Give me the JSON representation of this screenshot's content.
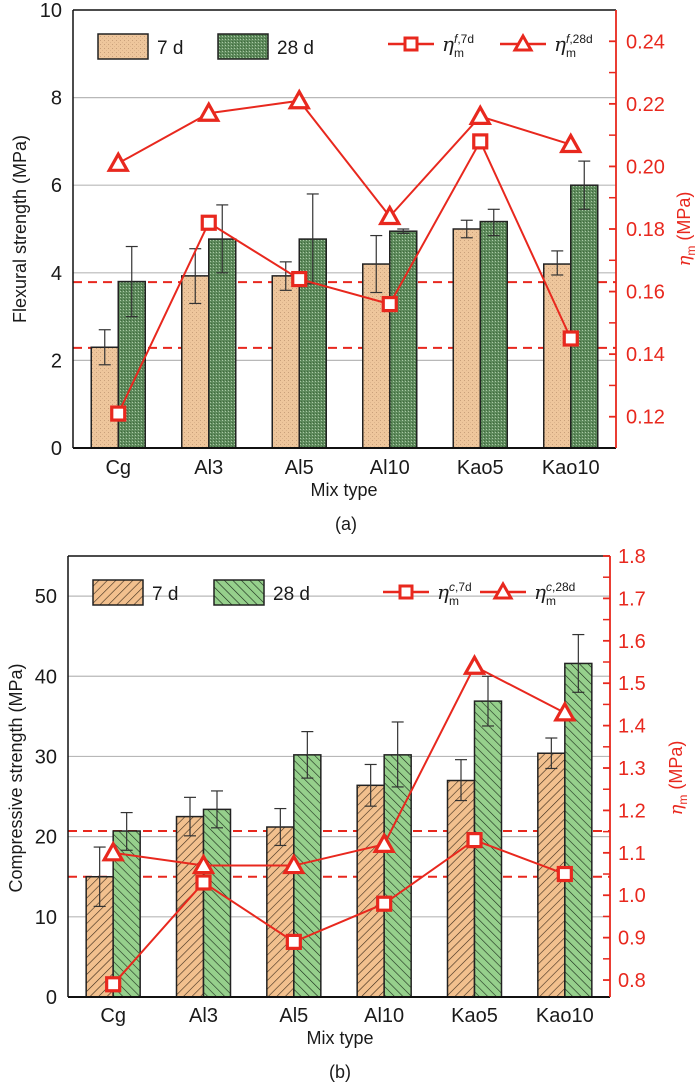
{
  "chart_data": [
    {
      "id": "a",
      "type": "bar",
      "caption": "(a)",
      "xlabel": "Mix type",
      "ylabel": "Flexural strength (MPa)",
      "y2label_symbol": "η",
      "y2label_sub": "m",
      "y2label_unit": " (MPa)",
      "categories": [
        "Cg",
        "Al3",
        "Al5",
        "Al10",
        "Kao5",
        "Kao10"
      ],
      "ylim": [
        0,
        10
      ],
      "yticks": [
        0,
        2,
        4,
        6,
        8,
        10
      ],
      "ytick_labels": [
        "0",
        "2",
        "4",
        "6",
        "8",
        "10"
      ],
      "y2lim": [
        0.11,
        0.25
      ],
      "y2ticks": [
        0.12,
        0.14,
        0.16,
        0.18,
        0.2,
        0.22,
        0.24
      ],
      "y2tick_labels": [
        "0.12",
        "0.14",
        "0.16",
        "0.18",
        "0.20",
        "0.22",
        "0.24"
      ],
      "y2minor": [
        0.13,
        0.15,
        0.17,
        0.19,
        0.21,
        0.23
      ],
      "grid": true,
      "bar_style": "dotted-texture",
      "series": [
        {
          "name": "7 d",
          "kind": "bar",
          "axis": "left",
          "color": "#eec69c",
          "values": [
            2.3,
            3.93,
            3.93,
            4.2,
            5.0,
            4.2
          ],
          "err_low": [
            1.9,
            3.3,
            3.6,
            3.55,
            4.8,
            3.95
          ],
          "err_high": [
            2.7,
            4.55,
            4.25,
            4.85,
            5.2,
            4.5
          ]
        },
        {
          "name": "28 d",
          "kind": "bar",
          "axis": "left",
          "color": "#5e8a5c",
          "values": [
            3.8,
            4.77,
            4.77,
            4.95,
            5.17,
            6.0
          ],
          "err_low": [
            3.0,
            4.0,
            3.75,
            4.9,
            4.85,
            5.45
          ],
          "err_high": [
            4.6,
            5.55,
            5.8,
            5.0,
            5.45,
            6.55
          ]
        },
        {
          "name": "η_m^{f,7d}",
          "label_main": "η",
          "label_sub": "m",
          "label_sup": "f,7d",
          "kind": "line",
          "marker": "square",
          "axis": "right",
          "color": "#e8281e",
          "values": [
            0.121,
            0.182,
            0.164,
            0.156,
            0.208,
            0.145
          ]
        },
        {
          "name": "η_m^{f,28d}",
          "label_main": "η",
          "label_sub": "m",
          "label_sup": "f,28d",
          "kind": "line",
          "marker": "triangle",
          "axis": "right",
          "color": "#e8281e",
          "values": [
            0.201,
            0.217,
            0.221,
            0.184,
            0.216,
            0.207
          ]
        }
      ],
      "reference_lines": [
        {
          "axis": "right",
          "value": 0.163,
          "style": "dashed",
          "color": "#e8281e"
        },
        {
          "axis": "right",
          "value": 0.142,
          "style": "dashed",
          "color": "#e8281e"
        }
      ],
      "legend": {
        "bars_placement": "top-left",
        "lines_placement": "top-right"
      }
    },
    {
      "id": "b",
      "type": "bar",
      "caption": "(b)",
      "xlabel": "Mix type",
      "ylabel": "Compressive strength (MPa)",
      "y2label_symbol": "η",
      "y2label_sub": "m",
      "y2label_unit": " (MPa)",
      "categories": [
        "Cg",
        "Al3",
        "Al5",
        "Al10",
        "Kao5",
        "Kao10"
      ],
      "ylim": [
        0,
        55
      ],
      "yticks": [
        0,
        10,
        20,
        30,
        40,
        50
      ],
      "ytick_labels": [
        "0",
        "10",
        "20",
        "30",
        "40",
        "50"
      ],
      "y2lim": [
        0.76,
        1.8
      ],
      "y2ticks": [
        0.8,
        0.9,
        1.0,
        1.1,
        1.2,
        1.3,
        1.4,
        1.5,
        1.6,
        1.7,
        1.8
      ],
      "y2tick_labels": [
        "0.8",
        "0.9",
        "1.0",
        "1.1",
        "1.2",
        "1.3",
        "1.4",
        "1.5",
        "1.6",
        "1.7",
        "1.8"
      ],
      "y2minor": [
        0.85,
        0.95,
        1.05,
        1.15,
        1.25,
        1.35,
        1.45,
        1.55,
        1.65,
        1.75
      ],
      "grid": true,
      "bar_style": "hatched",
      "series": [
        {
          "name": "7 d",
          "kind": "bar",
          "axis": "left",
          "color": "#f2c08e",
          "hatch": "forward",
          "values": [
            15.0,
            22.5,
            21.2,
            26.4,
            27.0,
            30.4
          ],
          "err_low": [
            11.3,
            20.1,
            18.9,
            23.8,
            24.5,
            28.5
          ],
          "err_high": [
            18.7,
            24.9,
            23.5,
            29.0,
            29.6,
            32.3
          ]
        },
        {
          "name": "28 d",
          "kind": "bar",
          "axis": "left",
          "color": "#96d08c",
          "hatch": "backward",
          "values": [
            20.7,
            23.4,
            30.2,
            30.2,
            36.9,
            41.6
          ],
          "err_low": [
            18.3,
            21.1,
            27.3,
            26.2,
            33.8,
            38.0
          ],
          "err_high": [
            23.0,
            25.7,
            33.1,
            34.3,
            40.0,
            45.2
          ]
        },
        {
          "name": "η_m^{c,7d}",
          "label_main": "η",
          "label_sub": "m",
          "label_sup": "c,7d",
          "kind": "line",
          "marker": "square",
          "axis": "right",
          "color": "#e8281e",
          "values": [
            0.79,
            1.03,
            0.89,
            0.98,
            1.13,
            1.05
          ]
        },
        {
          "name": "η_m^{c,28d}",
          "label_main": "η",
          "label_sub": "m",
          "label_sup": "c,28d",
          "kind": "line",
          "marker": "triangle",
          "axis": "right",
          "color": "#e8281e",
          "values": [
            1.1,
            1.07,
            1.07,
            1.12,
            1.54,
            1.43
          ]
        }
      ],
      "reference_lines": [
        {
          "axis": "left",
          "value": 20.7,
          "style": "dashed",
          "color": "#e8281e"
        },
        {
          "axis": "left",
          "value": 15.0,
          "style": "dashed",
          "color": "#e8281e"
        }
      ],
      "legend": {
        "bars_placement": "top-left",
        "lines_placement": "top-right"
      }
    }
  ]
}
